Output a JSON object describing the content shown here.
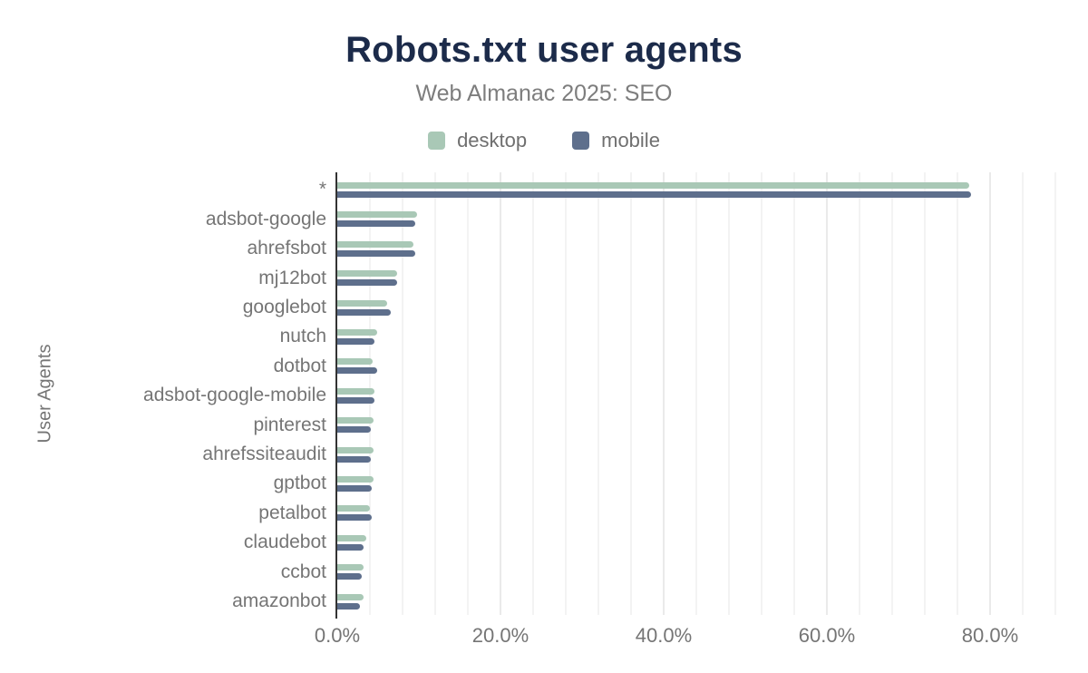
{
  "title": "Robots.txt user agents",
  "subtitle": "Web Almanac 2025: SEO",
  "y_axis_title": "User Agents",
  "legend": {
    "items": [
      {
        "label": "desktop",
        "color": "#a9c8b6"
      },
      {
        "label": "mobile",
        "color": "#5e6f8c"
      }
    ]
  },
  "colors": {
    "title": "#1c2b4a",
    "axis_text": "#757575",
    "axis_line": "#333333",
    "gridline_minor": "#f3f3f3",
    "gridline_major": "#eaeaea",
    "background": "#ffffff"
  },
  "chart_data": {
    "type": "bar",
    "orientation": "horizontal",
    "title": "Robots.txt user agents",
    "subtitle": "Web Almanac 2025: SEO",
    "xlabel": "",
    "ylabel": "User Agents",
    "legend_position": "top",
    "grid": true,
    "categories": [
      "*",
      "adsbot-google",
      "ahrefsbot",
      "mj12bot",
      "googlebot",
      "nutch",
      "dotbot",
      "adsbot-google-mobile",
      "pinterest",
      "ahrefssiteaudit",
      "gptbot",
      "petalbot",
      "claudebot",
      "ccbot",
      "amazonbot"
    ],
    "series": [
      {
        "name": "desktop",
        "color": "#a9c8b6",
        "values": [
          77.4,
          9.8,
          9.3,
          7.3,
          6.1,
          4.9,
          4.3,
          4.6,
          4.4,
          4.4,
          4.4,
          4.0,
          3.5,
          3.2,
          3.2
        ]
      },
      {
        "name": "mobile",
        "color": "#5e6f8c",
        "values": [
          77.7,
          9.6,
          9.6,
          7.3,
          6.5,
          4.6,
          4.9,
          4.6,
          4.1,
          4.1,
          4.2,
          4.2,
          3.2,
          3.0,
          2.8
        ]
      }
    ],
    "x_axis": {
      "min": 0,
      "max": 88,
      "unit": "%",
      "major_tick_step": 20,
      "minor_grid_step": 4,
      "tick_values": [
        0,
        20,
        40,
        60,
        80
      ],
      "tick_labels": [
        "0.0%",
        "20.0%",
        "40.0%",
        "60.0%",
        "80.0%"
      ]
    }
  }
}
